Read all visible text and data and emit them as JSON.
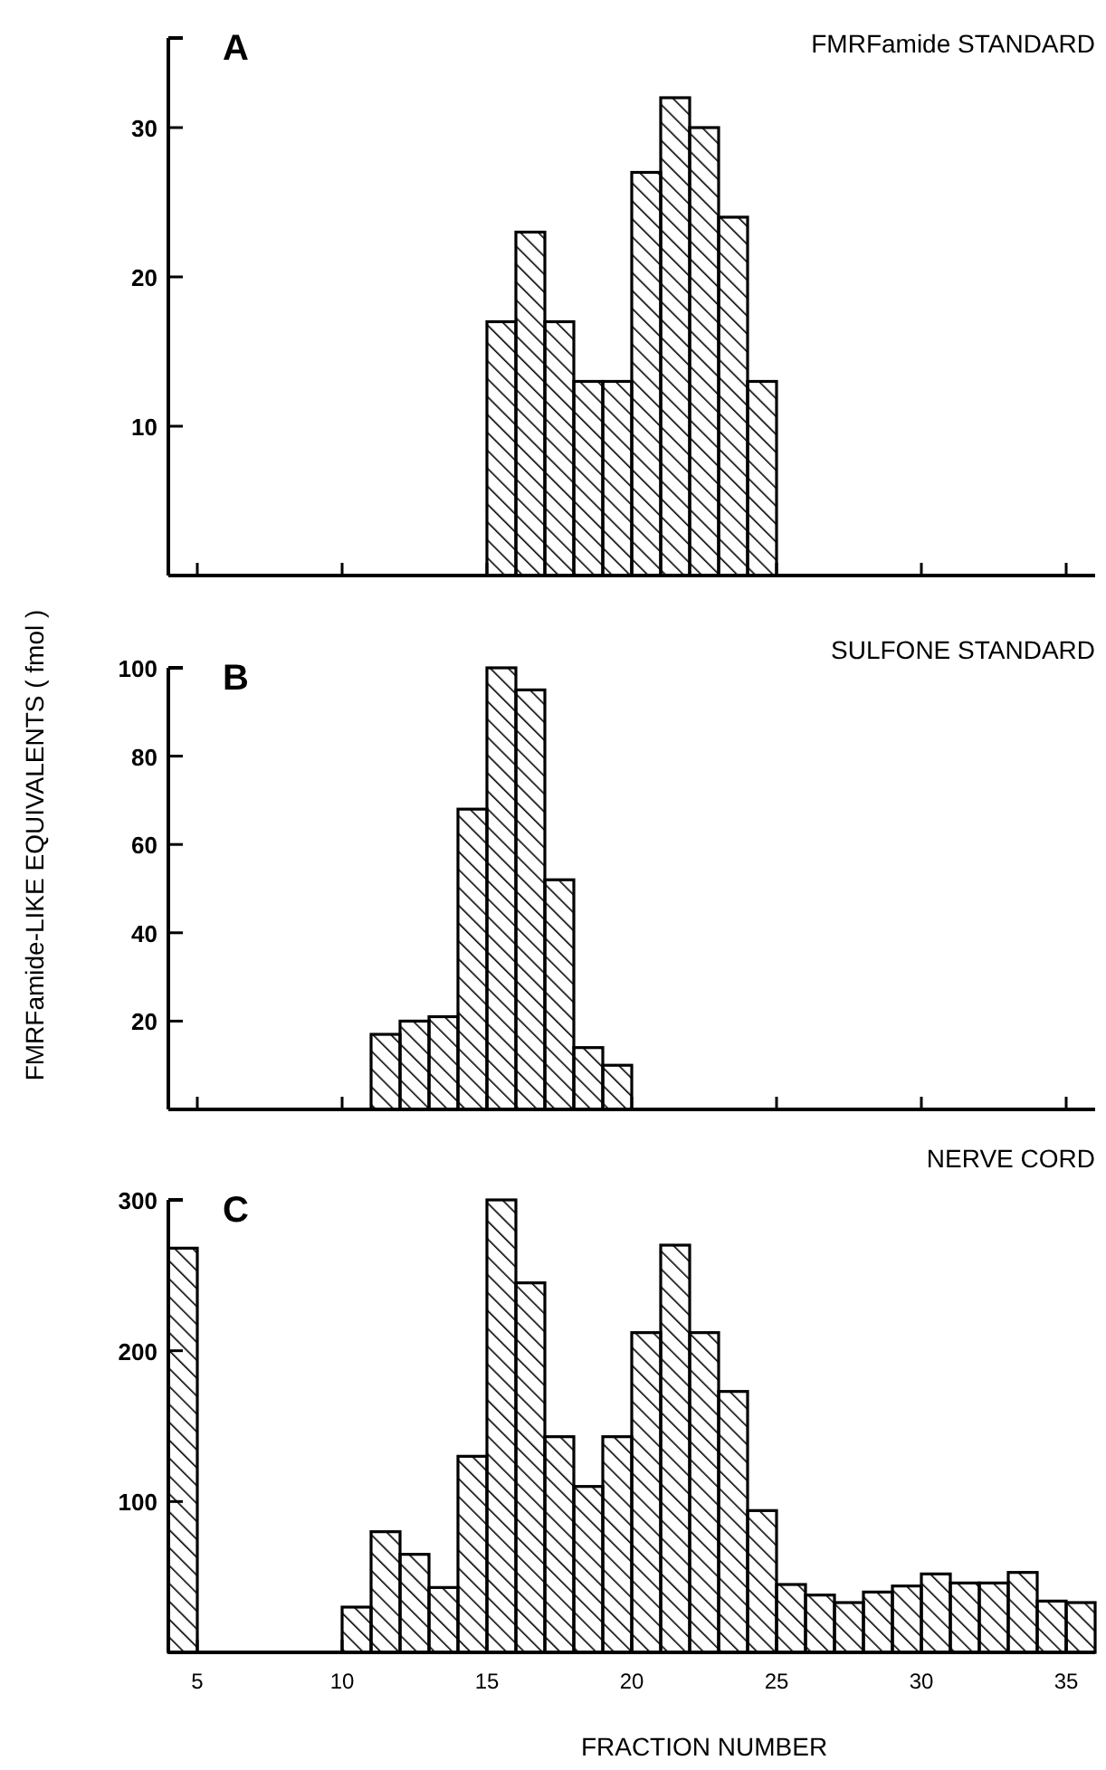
{
  "chart_data": [
    {
      "type": "histogram",
      "title": "FMRFamide STANDARD",
      "annotations": [
        "A"
      ],
      "bins": [
        15,
        16,
        17,
        18,
        19,
        20,
        21,
        22,
        23,
        24,
        25
      ],
      "values": [
        17,
        23,
        17,
        13,
        13,
        27,
        32,
        30,
        24,
        13
      ],
      "color": "#000000",
      "xlim": [
        4,
        36
      ],
      "xticks": [
        5,
        10,
        15,
        20,
        25,
        30,
        35
      ],
      "ylim": [
        0,
        36
      ],
      "yticks": [
        10,
        20,
        30
      ],
      "tick_labels": "y"
    },
    {
      "type": "histogram",
      "title": "SULFONE STANDARD",
      "annotations": [
        "B"
      ],
      "ylabel": "FMRFamide-LIKE EQUIVALENTS  ( fmol )",
      "bins": [
        11,
        12,
        13,
        14,
        15,
        16,
        17,
        18,
        19,
        20
      ],
      "values": [
        17,
        20,
        21,
        68,
        100,
        95,
        52,
        14,
        10
      ],
      "color": "#000000",
      "xlim": [
        4,
        36
      ],
      "xticks": [
        5,
        10,
        15,
        20,
        25,
        30,
        35
      ],
      "ylim": [
        0,
        100
      ],
      "yticks": [
        20,
        40,
        60,
        80,
        100
      ],
      "tick_labels": "y"
    },
    {
      "type": "histogram",
      "title": "NERVE CORD",
      "annotations": [
        "C"
      ],
      "xlabel": "FRACTION NUMBER",
      "bins": [
        4,
        5,
        6,
        7,
        8,
        9,
        10,
        11,
        12,
        13,
        14,
        15,
        16,
        17,
        18,
        19,
        20,
        21,
        22,
        23,
        24,
        25,
        26,
        27,
        28,
        29,
        30,
        31,
        32,
        33,
        34,
        35,
        36
      ],
      "values": [
        268,
        0,
        0,
        0,
        0,
        0,
        30,
        80,
        65,
        43,
        130,
        300,
        245,
        143,
        110,
        143,
        212,
        270,
        212,
        173,
        94,
        45,
        38,
        33,
        40,
        44,
        52,
        46,
        46,
        53,
        34,
        33
      ],
      "color": "#000000",
      "xlim": [
        4,
        36
      ],
      "xticks": [
        5,
        10,
        15,
        20,
        25,
        30,
        35
      ],
      "ylim": [
        0,
        300
      ],
      "yticks": [
        100,
        200,
        300
      ]
    }
  ]
}
